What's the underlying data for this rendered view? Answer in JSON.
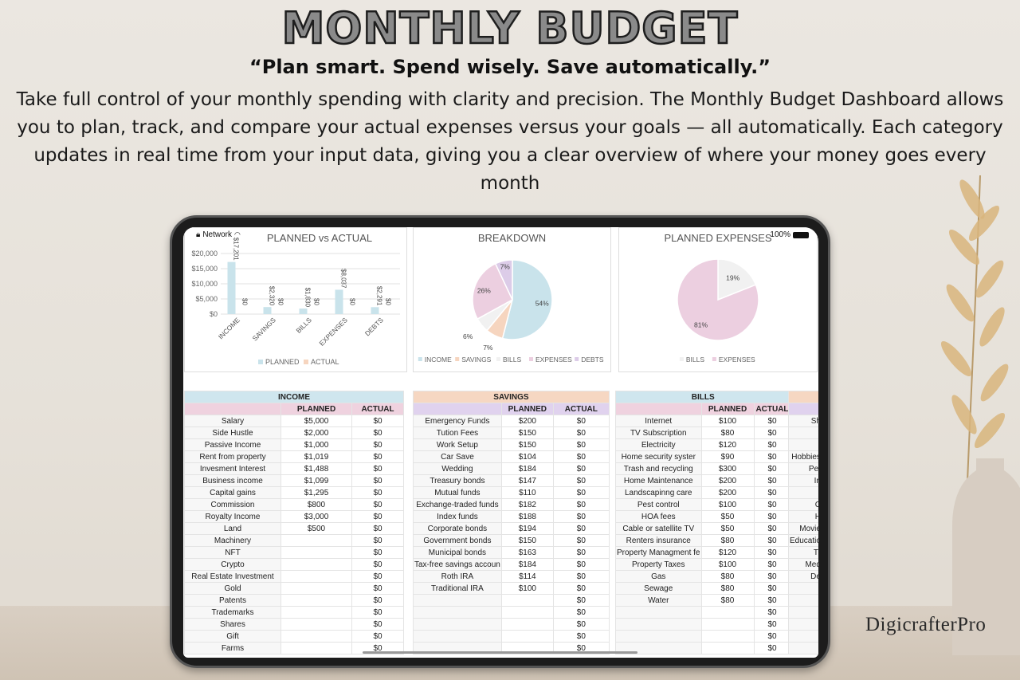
{
  "header": {
    "title": "MONTHLY BUDGET",
    "tagline": "“Plan smart. Spend wisely. Save automatically.”",
    "description": "Take full control of your monthly spending with clarity and precision. The Monthly Budget Dashboard allows you to plan, track, and compare your actual expenses versus your goals — all automatically. Each category updates in real time from your input data, giving you a clear overview of where your money goes every month"
  },
  "status": {
    "network": "Network",
    "battery": "100%"
  },
  "logo": "DigicrafterPro",
  "colors": {
    "income": "#c9e3eb",
    "savings": "#f6d5bf",
    "bills": "#f1f1f1",
    "expenses": "#eccfe0",
    "debts": "#dccce8",
    "planned": "#c9e3eb",
    "actual": "#f6d5bf"
  },
  "chart_data": [
    {
      "type": "bar",
      "title": "PLANNED vs ACTUAL",
      "categories": [
        "INCOME",
        "SAVINGS",
        "BILLS",
        "EXPENSES",
        "DEBTS"
      ],
      "ylim": [
        0,
        20000
      ],
      "yticks": [
        "$0",
        "$5,000",
        "$10,000",
        "$15,000",
        "$20,000"
      ],
      "grid": true,
      "legend": "bottom",
      "series": [
        {
          "name": "PLANNED",
          "values": [
            17201,
            2320,
            1830,
            8037,
            2291
          ],
          "labels": [
            "$17,201",
            "$2,320",
            "$1,830",
            "$8,037",
            "$2,291"
          ]
        },
        {
          "name": "ACTUAL",
          "values": [
            0,
            0,
            0,
            0,
            0
          ],
          "labels": [
            "$0",
            "$0",
            "$0",
            "$0",
            "$0"
          ]
        }
      ]
    },
    {
      "type": "pie",
      "title": "BREAKDOWN",
      "legend": "bottom",
      "labels": [
        "INCOME",
        "SAVINGS",
        "BILLS",
        "EXPENSES",
        "DEBTS"
      ],
      "values": [
        54,
        7,
        6,
        26,
        7
      ]
    },
    {
      "type": "pie",
      "title": "PLANNED EXPENSES",
      "legend": "bottom",
      "labels": [
        "BILLS",
        "EXPENSES"
      ],
      "values": [
        19,
        81
      ]
    }
  ],
  "tables": [
    {
      "title": "INCOME",
      "cols": [
        "",
        "PLANNED",
        "ACTUAL"
      ],
      "head": "#cfe6ee",
      "sub": "#efd2df",
      "rows": [
        [
          "Salary",
          "$5,000",
          "$0"
        ],
        [
          "Side Hustle",
          "$2,000",
          "$0"
        ],
        [
          "Passive Income",
          "$1,000",
          "$0"
        ],
        [
          "Rent from property",
          "$1,019",
          "$0"
        ],
        [
          "Invesment Interest",
          "$1,488",
          "$0"
        ],
        [
          "Business income",
          "$1,099",
          "$0"
        ],
        [
          "Capital gains",
          "$1,295",
          "$0"
        ],
        [
          "Commission",
          "$800",
          "$0"
        ],
        [
          "Royalty Income",
          "$3,000",
          "$0"
        ],
        [
          "Land",
          "$500",
          "$0"
        ],
        [
          "Machinery",
          "",
          "$0"
        ],
        [
          "NFT",
          "",
          "$0"
        ],
        [
          "Crypto",
          "",
          "$0"
        ],
        [
          "Real Estate Investment",
          "",
          "$0"
        ],
        [
          "Gold",
          "",
          "$0"
        ],
        [
          "Patents",
          "",
          "$0"
        ],
        [
          "Trademarks",
          "",
          "$0"
        ],
        [
          "Shares",
          "",
          "$0"
        ],
        [
          "Gift",
          "",
          "$0"
        ],
        [
          "Farms",
          "",
          "$0"
        ]
      ]
    },
    {
      "title": "SAVINGS",
      "cols": [
        "",
        "PLANNED",
        "ACTUAL"
      ],
      "head": "#f6d7c2",
      "sub": "#e0d2ee",
      "rows": [
        [
          "Emergency Funds",
          "$200",
          "$0"
        ],
        [
          "Tution Fees",
          "$150",
          "$0"
        ],
        [
          "Work Setup",
          "$150",
          "$0"
        ],
        [
          "Car Save",
          "$104",
          "$0"
        ],
        [
          "Wedding",
          "$184",
          "$0"
        ],
        [
          "Treasury bonds",
          "$147",
          "$0"
        ],
        [
          "Mutual funds",
          "$110",
          "$0"
        ],
        [
          "Exchange-traded funds",
          "$182",
          "$0"
        ],
        [
          "Index funds",
          "$188",
          "$0"
        ],
        [
          "Corporate bonds",
          "$194",
          "$0"
        ],
        [
          "Government bonds",
          "$150",
          "$0"
        ],
        [
          "Municipal bonds",
          "$163",
          "$0"
        ],
        [
          "Tax-free savings accoun",
          "$184",
          "$0"
        ],
        [
          "Roth IRA",
          "$114",
          "$0"
        ],
        [
          "Traditional IRA",
          "$100",
          "$0"
        ],
        [
          "",
          "",
          "$0"
        ],
        [
          "",
          "",
          "$0"
        ],
        [
          "",
          "",
          "$0"
        ],
        [
          "",
          "",
          "$0"
        ],
        [
          "",
          "",
          "$0"
        ]
      ]
    },
    {
      "title": "BILLS",
      "cols": [
        "",
        "PLANNED",
        "ACTUAL"
      ],
      "head": "#cfe6ee",
      "sub": "#efd2df",
      "rows": [
        [
          "Internet",
          "$100",
          "$0"
        ],
        [
          "TV Subscription",
          "$80",
          "$0"
        ],
        [
          "Electricity",
          "$120",
          "$0"
        ],
        [
          "Home security syster",
          "$90",
          "$0"
        ],
        [
          "Trash and recycling",
          "$300",
          "$0"
        ],
        [
          "Home Maintenance",
          "$200",
          "$0"
        ],
        [
          "Landscapinng care",
          "$200",
          "$0"
        ],
        [
          "Pest control",
          "$100",
          "$0"
        ],
        [
          "HOA fees",
          "$50",
          "$0"
        ],
        [
          "Cable or satellite TV",
          "$50",
          "$0"
        ],
        [
          "Renters insurance",
          "$80",
          "$0"
        ],
        [
          "Property Managment fe",
          "$120",
          "$0"
        ],
        [
          "Property Taxes",
          "$100",
          "$0"
        ],
        [
          "Gas",
          "$80",
          "$0"
        ],
        [
          "Sewage",
          "$80",
          "$0"
        ],
        [
          "Water",
          "$80",
          "$0"
        ],
        [
          "",
          "",
          "$0"
        ],
        [
          "",
          "",
          "$0"
        ],
        [
          "",
          "",
          "$0"
        ],
        [
          "",
          "",
          "$0"
        ]
      ]
    },
    {
      "title": "",
      "cols": [
        "",
        ""
      ],
      "head": "#f6d7c2",
      "sub": "#e0d2ee",
      "rows": [
        [
          "Sh"
        ],
        [
          ""
        ],
        [
          ""
        ],
        [
          "Hobbies"
        ],
        [
          "Pet"
        ],
        [
          "In"
        ],
        [
          ""
        ],
        [
          "C"
        ],
        [
          "H"
        ],
        [
          "Movie"
        ],
        [
          "Educatio"
        ],
        [
          "Tr"
        ],
        [
          "Med"
        ],
        [
          "De"
        ],
        [
          ""
        ],
        [
          ""
        ],
        [
          ""
        ],
        [
          ""
        ],
        [
          ""
        ],
        [
          ""
        ]
      ]
    }
  ]
}
